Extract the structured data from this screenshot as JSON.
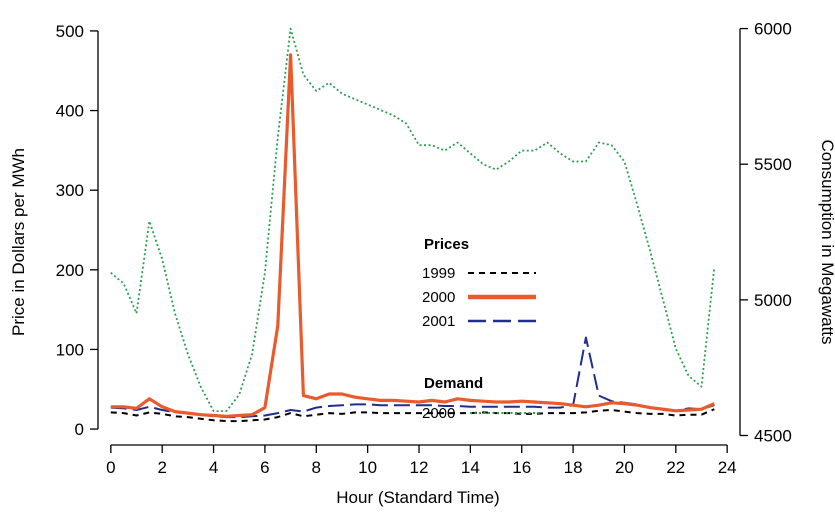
{
  "chart_data": {
    "type": "line",
    "title": "",
    "xlabel": "Hour (Standard Time)",
    "ylabel_left": "Price in Dollars per MWh",
    "ylabel_right": "Consumption in Megawatts",
    "xlim": [
      -0.5,
      24.5
    ],
    "ylim_left": [
      -20,
      520
    ],
    "ylim_right": [
      4465,
      6050
    ],
    "xticks": [
      0,
      2,
      4,
      6,
      8,
      10,
      12,
      14,
      16,
      18,
      20,
      22,
      24
    ],
    "yticks_left": [
      0,
      100,
      200,
      300,
      400,
      500
    ],
    "yticks_right": [
      4500,
      5000,
      5500,
      6000
    ],
    "grid": false,
    "legend": {
      "placement": "center-right",
      "prices_heading": "Prices",
      "demand_heading": "Demand"
    },
    "series": [
      {
        "name": "1999",
        "axis": "left",
        "color": "#000000",
        "style": "dashed",
        "x": [
          0,
          0.5,
          1,
          1.5,
          2,
          2.5,
          3,
          3.5,
          4,
          4.5,
          5,
          5.5,
          6,
          6.5,
          7,
          7.5,
          8,
          8.5,
          9,
          9.5,
          10,
          10.5,
          11,
          11.5,
          12,
          12.5,
          13,
          13.5,
          14,
          14.5,
          15,
          15.5,
          16,
          16.5,
          17,
          17.5,
          18,
          18.5,
          19,
          19.5,
          20,
          20.5,
          21,
          21.5,
          22,
          22.5,
          23,
          23.5
        ],
        "y": [
          21,
          20,
          17,
          21,
          19,
          16,
          15,
          13,
          11,
          10,
          10,
          11,
          12,
          15,
          20,
          16,
          18,
          20,
          19,
          21,
          21,
          20,
          20,
          20,
          20,
          20,
          20,
          20,
          20,
          21,
          20,
          20,
          19,
          19,
          20,
          20,
          20,
          21,
          23,
          24,
          22,
          20,
          19,
          19,
          17,
          18,
          18,
          25
        ]
      },
      {
        "name": "2000",
        "axis": "left",
        "color": "#e95b2c",
        "style": "solid",
        "x": [
          0,
          0.5,
          1,
          1.5,
          2,
          2.5,
          3,
          3.5,
          4,
          4.5,
          5,
          5.5,
          6,
          6.5,
          7,
          7.5,
          8,
          8.5,
          9,
          9.5,
          10,
          10.5,
          11,
          11.5,
          12,
          12.5,
          13,
          13.5,
          14,
          14.5,
          15,
          15.5,
          16,
          16.5,
          17,
          17.5,
          18,
          18.5,
          19,
          19.5,
          20,
          20.5,
          21,
          21.5,
          22,
          22.5,
          23,
          23.5
        ],
        "y": [
          28,
          28,
          26,
          38,
          28,
          22,
          20,
          18,
          17,
          16,
          17,
          18,
          27,
          130,
          470,
          42,
          38,
          44,
          44,
          40,
          38,
          36,
          36,
          35,
          34,
          36,
          34,
          38,
          36,
          35,
          34,
          34,
          35,
          34,
          33,
          32,
          30,
          28,
          30,
          33,
          32,
          30,
          27,
          25,
          23,
          24,
          25,
          32
        ]
      },
      {
        "name": "2001",
        "axis": "left",
        "color": "#1f2e8f",
        "style": "longdash",
        "x": [
          0,
          0.5,
          1,
          1.5,
          2,
          2.5,
          3,
          3.5,
          4,
          4.5,
          5,
          5.5,
          6,
          6.5,
          7,
          7.5,
          8,
          8.5,
          9,
          9.5,
          10,
          10.5,
          11,
          11.5,
          12,
          12.5,
          13,
          13.5,
          14,
          14.5,
          15,
          15.5,
          16,
          16.5,
          17,
          17.5,
          18,
          18.5,
          19,
          19.5,
          20,
          20.5,
          21,
          21.5,
          22,
          22.5,
          23,
          23.5
        ],
        "y": [
          27,
          26,
          24,
          28,
          24,
          21,
          20,
          18,
          16,
          15,
          15,
          16,
          17,
          20,
          24,
          22,
          27,
          29,
          30,
          31,
          31,
          30,
          30,
          30,
          30,
          30,
          29,
          29,
          28,
          28,
          28,
          28,
          28,
          28,
          27,
          27,
          30,
          115,
          42,
          35,
          33,
          31,
          27,
          24,
          23,
          26,
          25,
          30
        ]
      },
      {
        "name": "2000",
        "axis": "right",
        "color": "#2e9e4f",
        "style": "dotted",
        "x": [
          0,
          0.5,
          1,
          1.5,
          2,
          2.5,
          3,
          3.5,
          4,
          4.5,
          5,
          5.5,
          6,
          6.5,
          7,
          7.5,
          8,
          8.5,
          9,
          9.5,
          10,
          10.5,
          11,
          11.5,
          12,
          12.5,
          13,
          13.5,
          14,
          14.5,
          15,
          15.5,
          16,
          16.5,
          17,
          17.5,
          18,
          18.5,
          19,
          19.5,
          20,
          20.5,
          21,
          21.5,
          22,
          22.5,
          23,
          23.5
        ],
        "y": [
          5100,
          5060,
          4950,
          5290,
          5150,
          4950,
          4800,
          4680,
          4590,
          4590,
          4650,
          4800,
          5100,
          5600,
          6000,
          5830,
          5770,
          5800,
          5760,
          5740,
          5720,
          5700,
          5680,
          5650,
          5570,
          5570,
          5550,
          5580,
          5540,
          5500,
          5480,
          5510,
          5550,
          5550,
          5580,
          5540,
          5510,
          5510,
          5580,
          5570,
          5510,
          5350,
          5180,
          5000,
          4820,
          4720,
          4680,
          5120
        ]
      }
    ]
  }
}
